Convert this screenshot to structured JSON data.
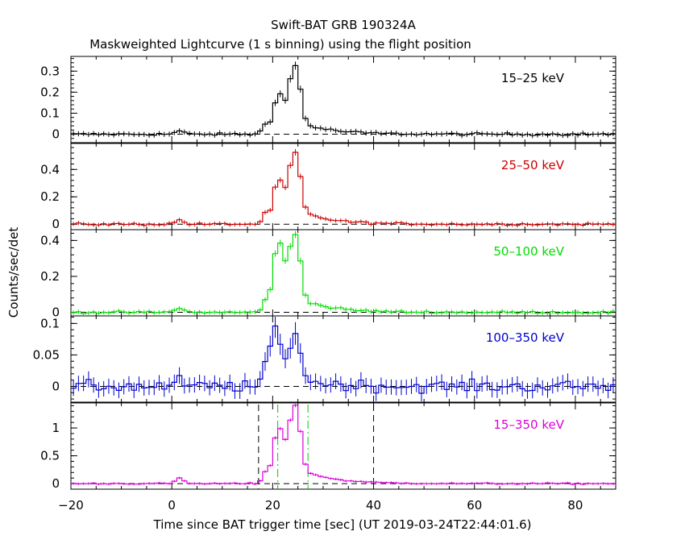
{
  "chart_data": {
    "type": "line",
    "title": "Swift-BAT GRB 190324A",
    "subtitle": "Maskweighted Lightcurve (1 s binning) using the flight position",
    "xlabel": "Time since BAT trigger time [sec] (UT 2019-03-24T22:44:01.6)",
    "ylabel": "Counts/sec/det",
    "xlim": [
      -20,
      88
    ],
    "x_ticks": [
      "-20",
      "0",
      "20",
      "40",
      "60",
      "80"
    ],
    "grid": false,
    "panels": [
      {
        "name": "15-25 keV",
        "label": "15–25 keV",
        "color": "#000000",
        "ylim": [
          -0.04,
          0.37
        ],
        "y_ticks": [
          0,
          0.1,
          0.2,
          0.3
        ],
        "y_tick_labels": [
          "0",
          "0.1",
          "0.2",
          "0.3"
        ],
        "peaks": [
          [
            21.2,
            0.19
          ],
          [
            24.3,
            0.33
          ]
        ],
        "decay": 0.06,
        "bump": 0.015,
        "noise": 0.006,
        "err": 0.012
      },
      {
        "name": "25-50 keV",
        "label": "25–50 keV",
        "color": "#cc0000",
        "ylim": [
          -0.04,
          0.59
        ],
        "y_ticks": [
          0,
          0.2,
          0.4
        ],
        "y_tick_labels": [
          "0",
          "0.2",
          "0.4"
        ],
        "peaks": [
          [
            21.2,
            0.32
          ],
          [
            24.3,
            0.53
          ]
        ],
        "decay": 0.1,
        "bump": 0.03,
        "noise": 0.008,
        "err": 0.015
      },
      {
        "name": "50-100 keV",
        "label": "50–100 keV",
        "color": "#00dd00",
        "ylim": [
          -0.02,
          0.46
        ],
        "y_ticks": [
          0,
          0.2,
          0.4
        ],
        "y_tick_labels": [
          "0",
          "0.2",
          "0.4"
        ],
        "peaks": [
          [
            21.2,
            0.39
          ],
          [
            24.3,
            0.44
          ]
        ],
        "decay": 0.08,
        "bump": 0.025,
        "noise": 0.006,
        "err": 0.012
      },
      {
        "name": "100-350 keV",
        "label": "100–350 keV",
        "color": "#0000cc",
        "ylim": [
          -0.025,
          0.112
        ],
        "y_ticks": [
          0,
          0.05,
          0.1
        ],
        "y_tick_labels": [
          "0",
          "0.05",
          "0.1"
        ],
        "peaks": [
          [
            20.5,
            0.095
          ],
          [
            24.3,
            0.09
          ]
        ],
        "decay": 0.012,
        "bump": 0.008,
        "noise": 0.009,
        "err": 0.012
      },
      {
        "name": "15-350 keV",
        "label": "15–350 keV",
        "color": "#dd00dd",
        "ylim": [
          -0.1,
          1.45
        ],
        "y_ticks": [
          0,
          0.5,
          1
        ],
        "y_tick_labels": [
          "0",
          "0.5",
          "1"
        ],
        "peaks": [
          [
            21.2,
            1.0
          ],
          [
            24.3,
            1.42
          ]
        ],
        "decay": 0.28,
        "bump": 0.09,
        "noise": 0.012,
        "err": 0.022,
        "markers": [
          {
            "x": 17.2,
            "style": "dashed",
            "color": "#000000"
          },
          {
            "x": 21.0,
            "style": "dashdot",
            "color": "#00cc00"
          },
          {
            "x": 27.0,
            "style": "dashdot",
            "color": "#00cc00"
          },
          {
            "x": 40.0,
            "style": "dashed",
            "color": "#000000"
          }
        ]
      }
    ]
  }
}
